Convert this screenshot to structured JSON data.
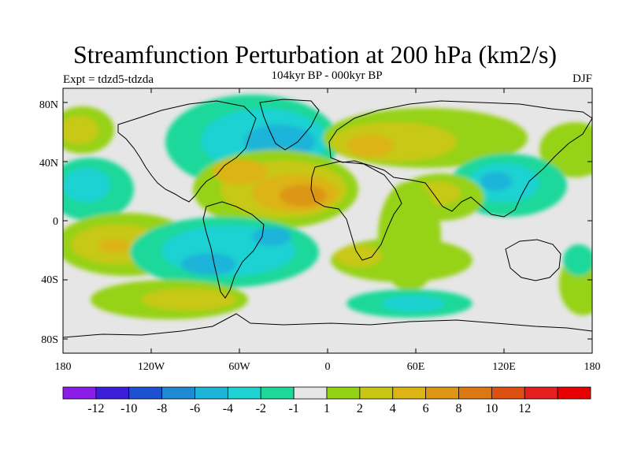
{
  "title": "Streamfunction Perturbation at 200 hPa (km2/s)",
  "subtitle": "104kyr BP - 000kyr BP",
  "experiment": "Expt = tdzd5-tdzda",
  "season": "DJF",
  "lat_labels": [
    "80N",
    "40N",
    "0",
    "40S",
    "80S"
  ],
  "lon_labels": [
    "180",
    "120W",
    "60W",
    "0",
    "60E",
    "120E",
    "180"
  ],
  "colorbar": {
    "labels": [
      "-12",
      "-10",
      "-8",
      "-6",
      "-4",
      "-2",
      "-1",
      "1",
      "2",
      "4",
      "6",
      "8",
      "10",
      "12"
    ],
    "colors": [
      "#8a1ee8",
      "#3c1ed8",
      "#1e50d2",
      "#1e8ad2",
      "#1eb4d8",
      "#1ed2d2",
      "#1ed89a",
      "#e6e6e6",
      "#96d214",
      "#c8c814",
      "#dcb414",
      "#dc9614",
      "#dc7814",
      "#dc5014",
      "#e61e1e",
      "#e60000"
    ]
  },
  "field_colors": {
    "background": "#e6e6e6",
    "pos1": "#96d214",
    "pos2": "#c8c814",
    "pos3": "#dcb414",
    "pos4": "#dc9614",
    "pos5": "#dc7814",
    "neg1": "#1ed89a",
    "neg2": "#1ed2d2",
    "neg3": "#1eb4d8",
    "neg4": "#1e8ad2"
  }
}
